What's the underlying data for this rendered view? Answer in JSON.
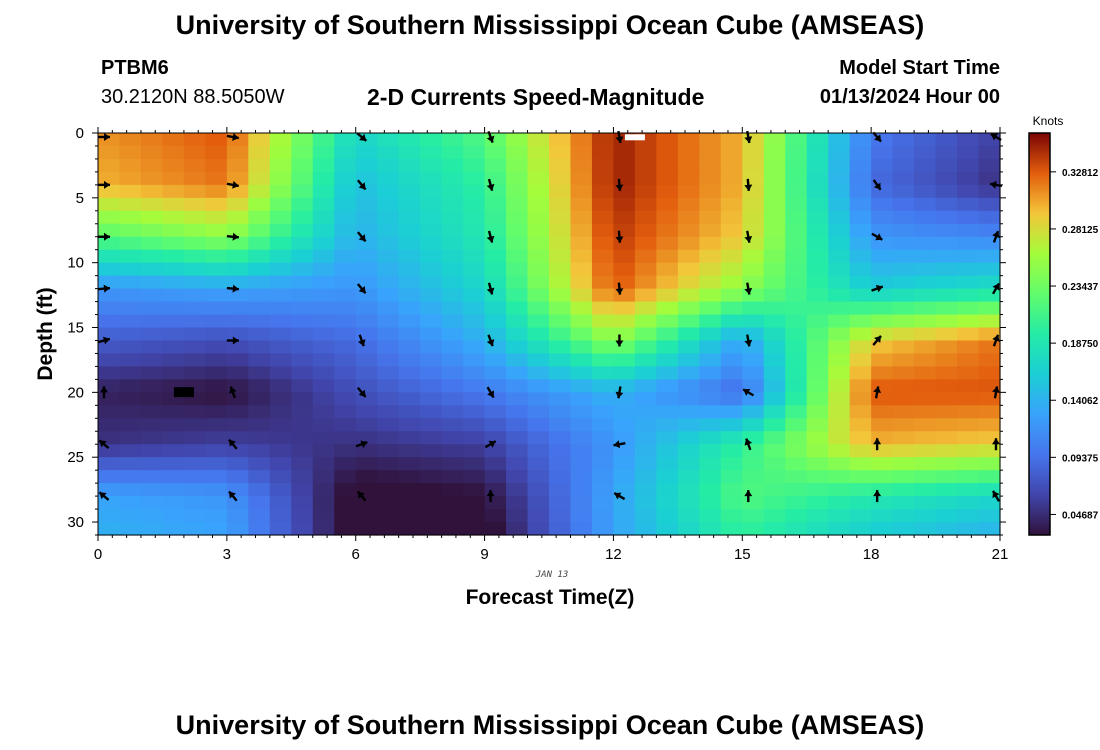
{
  "header": {
    "title": "University of Southern Mississippi Ocean Cube (AMSEAS)",
    "station": "PTBM6",
    "coords": "30.2120N  88.5050W",
    "plot_title": "2-D Currents Speed-Magnitude",
    "model_start_label": "Model Start Time",
    "model_start_value": "01/13/2024 Hour 00"
  },
  "footer": {
    "title": "University of Southern Mississippi Ocean Cube (AMSEAS)"
  },
  "chart_data": {
    "type": "heatmap",
    "title": "2-D Currents Speed-Magnitude",
    "xlabel": "Forecast Time(Z)",
    "ylabel": "Depth (ft)",
    "x_date_label": "JAN 13",
    "xlim": [
      0,
      21
    ],
    "ylim": [
      31,
      0
    ],
    "x_ticks": [
      0,
      3,
      6,
      9,
      12,
      15,
      18,
      21
    ],
    "y_ticks": [
      0,
      5,
      10,
      15,
      20,
      25,
      30
    ],
    "colorbar": {
      "unit": "Knots",
      "range": [
        0.03,
        0.36
      ],
      "ticks": [
        "0.04687",
        "0.09375",
        "0.14062",
        "0.18750",
        "0.23437",
        "0.28125",
        "0.32812"
      ]
    },
    "times": [
      0,
      3,
      6,
      9,
      12,
      15,
      18,
      21
    ],
    "depths": [
      0,
      4,
      8,
      12,
      16,
      20,
      24,
      28
    ],
    "speed": [
      [
        0.31,
        0.33,
        0.17,
        0.22,
        0.35,
        0.3,
        0.1,
        0.06
      ],
      [
        0.3,
        0.32,
        0.15,
        0.2,
        0.35,
        0.3,
        0.09,
        0.05
      ],
      [
        0.22,
        0.25,
        0.14,
        0.19,
        0.34,
        0.29,
        0.12,
        0.11
      ],
      [
        0.12,
        0.13,
        0.12,
        0.17,
        0.33,
        0.25,
        0.16,
        0.18
      ],
      [
        0.08,
        0.07,
        0.09,
        0.14,
        0.25,
        0.13,
        0.29,
        0.32
      ],
      [
        0.04,
        0.03,
        0.07,
        0.1,
        0.14,
        0.09,
        0.33,
        0.33
      ],
      [
        0.05,
        0.06,
        0.05,
        0.06,
        0.12,
        0.2,
        0.3,
        0.29
      ],
      [
        0.13,
        0.12,
        0.02,
        0.03,
        0.13,
        0.22,
        0.19,
        0.17
      ]
    ],
    "extra_rows": {
      "depth_31": [
        0.14,
        0.13,
        0.02,
        0.02,
        0.13,
        0.2,
        0.16,
        0.14
      ]
    },
    "vector_directions_deg": [
      [
        90,
        100,
        130,
        160,
        170,
        170,
        140,
        300
      ],
      [
        90,
        100,
        140,
        165,
        175,
        175,
        145,
        280
      ],
      [
        90,
        95,
        140,
        165,
        175,
        170,
        120,
        20
      ],
      [
        85,
        95,
        140,
        165,
        175,
        170,
        70,
        30
      ],
      [
        75,
        90,
        160,
        160,
        180,
        170,
        40,
        20
      ],
      [
        0,
        340,
        140,
        150,
        190,
        300,
        10,
        10
      ],
      [
        310,
        320,
        70,
        60,
        260,
        340,
        0,
        0
      ],
      [
        310,
        320,
        320,
        0,
        300,
        0,
        0,
        330
      ]
    ],
    "missing_markers": [
      {
        "time": 12.5,
        "depth": 0,
        "color": "#ffffff"
      },
      {
        "time": 2.0,
        "depth": 20,
        "color": "#000000"
      }
    ]
  }
}
